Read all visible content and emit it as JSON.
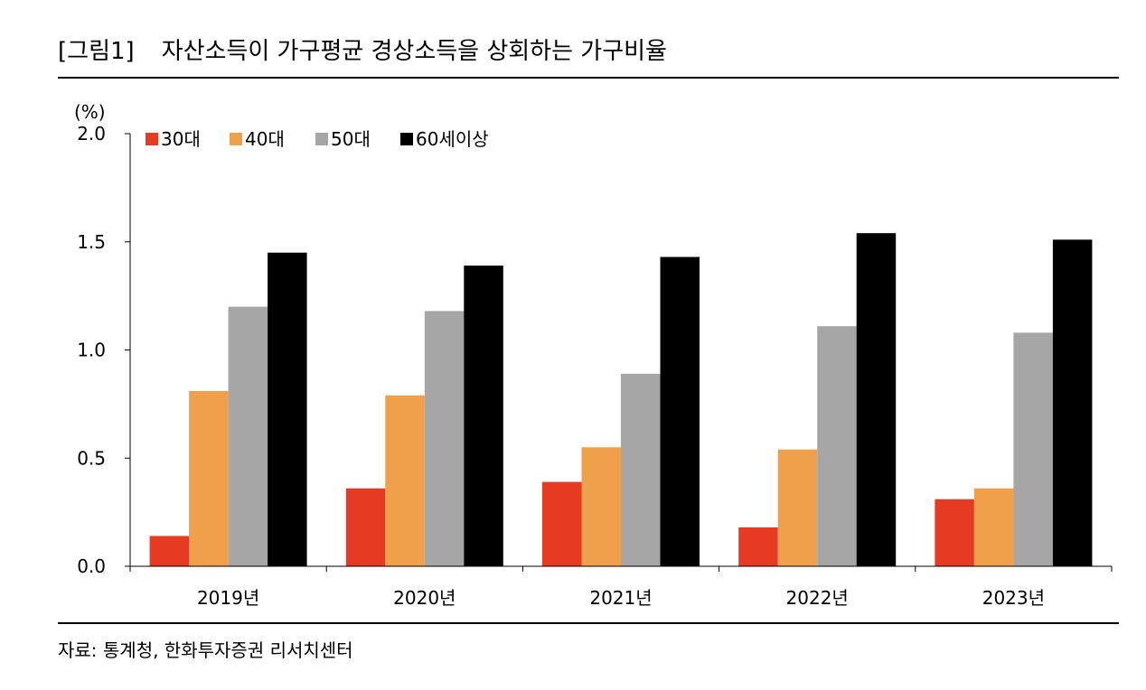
{
  "header": {
    "figure_label": "[그림1]",
    "title": "자산소득이 가구평균 경상소득을 상회하는 가구비율"
  },
  "source": "자료: 통계청, 한화투자증권 리서치센터",
  "chart_data": {
    "type": "bar",
    "ylabel": "(%)",
    "ylim": [
      0,
      2.0
    ],
    "yticks": [
      "0.0",
      "0.5",
      "1.0",
      "1.5",
      "2.0"
    ],
    "grid": false,
    "legend_position": "top-left",
    "categories": [
      "2019년",
      "2020년",
      "2021년",
      "2022년",
      "2023년"
    ],
    "series": [
      {
        "name": "30대",
        "color": "#e63a22",
        "values": [
          0.14,
          0.36,
          0.39,
          0.18,
          0.31
        ]
      },
      {
        "name": "40대",
        "color": "#f0a04b",
        "values": [
          0.81,
          0.79,
          0.55,
          0.54,
          0.36
        ]
      },
      {
        "name": "50대",
        "color": "#a6a6a6",
        "values": [
          1.2,
          1.18,
          0.89,
          1.11,
          1.08
        ]
      },
      {
        "name": "60세이상",
        "color": "#000000",
        "values": [
          1.45,
          1.39,
          1.43,
          1.54,
          1.51
        ]
      }
    ]
  }
}
